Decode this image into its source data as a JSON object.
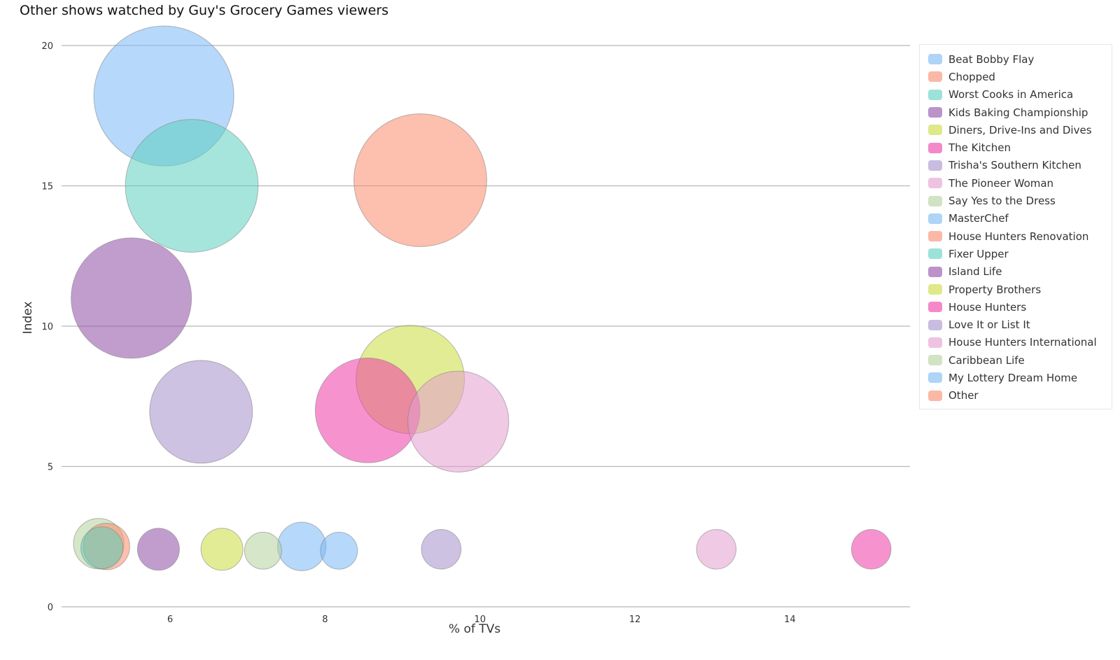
{
  "chart_data": {
    "type": "scatter",
    "title": "Other shows watched by Guy's Grocery Games viewers",
    "xlabel": "% of TVs",
    "ylabel": "Index",
    "xlim": [
      4.6,
      15.55
    ],
    "ylim": [
      0,
      20
    ],
    "x_ticks": [
      6,
      8,
      10,
      12,
      14
    ],
    "y_ticks": [
      0,
      5,
      10,
      15,
      20
    ],
    "grid": "horizontal",
    "legend_placement": "right",
    "series": [
      {
        "name": "Beat Bobby Flay",
        "color": "#7ab8f5",
        "x": 5.92,
        "y": 18.2,
        "size": 100
      },
      {
        "name": "Chopped",
        "color": "#fb8a6c",
        "x": 9.23,
        "y": 15.2,
        "size": 90
      },
      {
        "name": "Worst Cooks in America",
        "color": "#5ccfc0",
        "x": 6.28,
        "y": 15.0,
        "size": 90
      },
      {
        "name": "Kids Baking Championship",
        "color": "#8e4da6",
        "x": 5.5,
        "y": 11.0,
        "size": 74
      },
      {
        "name": "Diners, Drive-Ins and Dives",
        "color": "#cbdc3e",
        "x": 9.1,
        "y": 8.1,
        "size": 60
      },
      {
        "name": "The Kitchen",
        "color": "#ee3ba8",
        "x": 8.55,
        "y": 7.0,
        "size": 56
      },
      {
        "name": "Trisha's Southern Kitchen",
        "color": "#a690cc",
        "x": 6.4,
        "y": 6.95,
        "size": 54
      },
      {
        "name": "The Pioneer Woman",
        "color": "#e49cce",
        "x": 9.72,
        "y": 6.6,
        "size": 52
      },
      {
        "name": "Say Yes to the Dress",
        "color": "#b4d29b",
        "x": 5.08,
        "y": 2.25,
        "size": 13
      },
      {
        "name": "MasterChef",
        "color": "#7ab8f5",
        "x": 7.7,
        "y": 2.15,
        "size": 12
      },
      {
        "name": "House Hunters Renovation",
        "color": "#fb8a6c",
        "x": 5.18,
        "y": 2.15,
        "size": 11
      },
      {
        "name": "Fixer Upper",
        "color": "#5ccfc0",
        "x": 5.12,
        "y": 2.1,
        "size": 9
      },
      {
        "name": "Island Life",
        "color": "#8e4da6",
        "x": 5.85,
        "y": 2.05,
        "size": 9
      },
      {
        "name": "Property Brothers",
        "color": "#cbdc3e",
        "x": 6.67,
        "y": 2.05,
        "size": 9
      },
      {
        "name": "House Hunters",
        "color": "#ee3ba8",
        "x": 15.05,
        "y": 2.05,
        "size": 8
      },
      {
        "name": "Love It or List It",
        "color": "#a690cc",
        "x": 9.5,
        "y": 2.05,
        "size": 8
      },
      {
        "name": "House Hunters International",
        "color": "#e49cce",
        "x": 13.05,
        "y": 2.05,
        "size": 8
      },
      {
        "name": "Caribbean Life",
        "color": "#b4d29b",
        "x": 7.2,
        "y": 2.0,
        "size": 7
      },
      {
        "name": "My Lottery Dream Home",
        "color": "#7ab8f5",
        "x": 8.18,
        "y": 2.0,
        "size": 7
      },
      {
        "name": "Other",
        "color": "#fb8a6c",
        "x": null,
        "y": null,
        "size": null
      }
    ]
  },
  "colors": {
    "gridline": "#b8b8b8",
    "axis_line": "#b8b8b8",
    "bubble_stroke": "#808080"
  }
}
